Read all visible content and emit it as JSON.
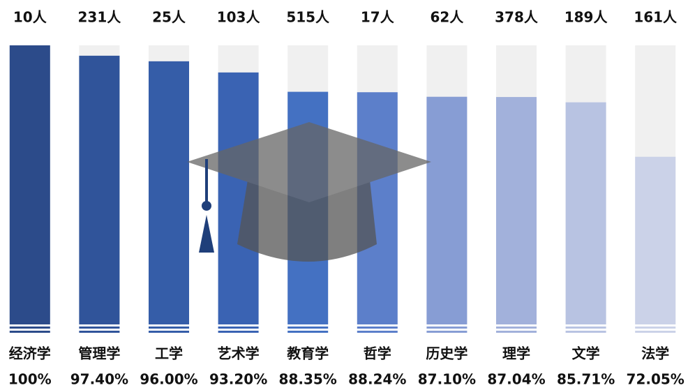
{
  "chart_data": {
    "type": "bar",
    "categories": [
      "经济学",
      "管理学",
      "工学",
      "艺术学",
      "教育学",
      "哲学",
      "历史学",
      "理学",
      "文学",
      "法学"
    ],
    "values": [
      100,
      97.4,
      96,
      93.2,
      88.35,
      88.24,
      87.1,
      87.04,
      85.71,
      72.05
    ],
    "value_labels": [
      "100%",
      "97.40%",
      "96.00%",
      "93.20%",
      "88.35%",
      "88.24%",
      "87.10%",
      "87.04%",
      "85.71%",
      "72.05%"
    ],
    "count_labels": [
      "10人",
      "231人",
      "25人",
      "103人",
      "515人",
      "17人",
      "62人",
      "378人",
      "189人",
      "161人"
    ],
    "colors": [
      "#2c4b8a",
      "#30549a",
      "#355da8",
      "#3a63b3",
      "#4471c2",
      "#5c7fca",
      "#879dd4",
      "#a2b1db",
      "#b8c3e2",
      "#cbd2e8"
    ],
    "track_color": "#f0f0f0",
    "ylim": [
      30,
      100
    ]
  }
}
